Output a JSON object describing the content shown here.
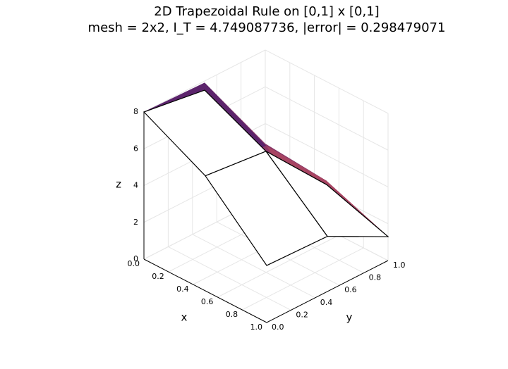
{
  "chart_data": {
    "type": "surface3d",
    "title": "2D Trapezoidal Rule on [0,1] x [0,1]",
    "subtitle": "mesh = 2x2,  I_T = 4.749087736,  |error| = 0.298479071",
    "xlabel": "x",
    "ylabel": "y",
    "zlabel": "z",
    "x": [
      0,
      0.5,
      1
    ],
    "y": [
      0,
      0.5,
      1
    ],
    "xlim": [
      0,
      1
    ],
    "ylim": [
      0,
      1
    ],
    "zlim": [
      0,
      8
    ],
    "xticks": [
      {
        "value": 0,
        "label": "0.0"
      },
      0.2,
      0.4,
      0.6,
      0.8,
      {
        "value": 1,
        "label": "1.0"
      }
    ],
    "yticks": [
      {
        "value": 0,
        "label": "0.0"
      },
      0.2,
      0.4,
      0.6,
      0.8,
      {
        "value": 1,
        "label": "1.0"
      }
    ],
    "zticks": [
      0,
      2,
      4,
      6,
      8
    ],
    "grid": true,
    "series": [
      {
        "colormap": [
          "#e8605a",
          "#4a1c6e"
        ],
        "values": [
          [
            8,
            7.9,
            2.9
          ],
          [
            6.3,
            6.2,
            2.6
          ],
          [
            3.1,
            3.0,
            1.3
          ]
        ]
      },
      {
        "color": "#000000",
        "values": [
          [
            8,
            7.5,
            2.5
          ],
          [
            6.25,
            5.9,
            2.4
          ],
          [
            3.1,
            3.0,
            1.3
          ]
        ]
      }
    ]
  }
}
